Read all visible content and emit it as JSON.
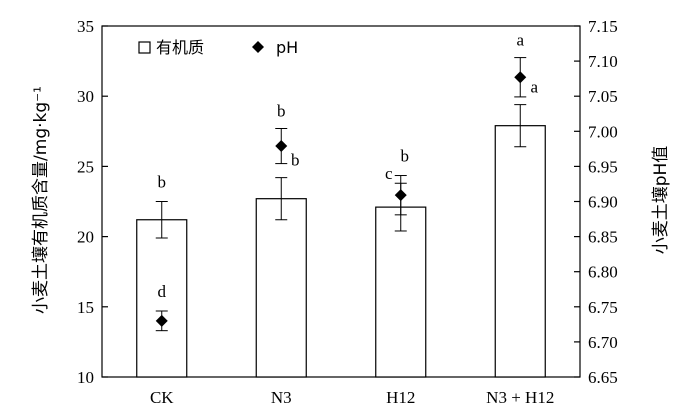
{
  "chart_data": {
    "type": "bar",
    "categories": [
      "CK",
      "N3",
      "H12",
      "N3 + H12"
    ],
    "ylabel": "小麦土壤有机质含量/mg·kg⁻¹",
    "y2label": "小麦土壤pH值",
    "ylim": [
      10,
      35
    ],
    "y2lim": [
      6.65,
      7.15
    ],
    "yticks": [
      "10",
      "15",
      "20",
      "25",
      "30",
      "35"
    ],
    "y2ticks": [
      "6.65",
      "6.70",
      "6.75",
      "6.80",
      "6.85",
      "6.90",
      "6.95",
      "7.00",
      "7.05",
      "7.10",
      "7.15"
    ],
    "legend_position": "top-left",
    "series": [
      {
        "name": "有机质",
        "kind": "bar",
        "axis": "left",
        "values": [
          21.2,
          22.7,
          22.1,
          27.9
        ],
        "errors": [
          1.3,
          1.5,
          1.7,
          1.5
        ],
        "labels": [
          "b",
          "b",
          "c",
          "a"
        ]
      },
      {
        "name": "pH",
        "kind": "scatter",
        "axis": "right",
        "marker": "diamond",
        "values": [
          6.73,
          6.979,
          6.909,
          7.077
        ],
        "errors": [
          0.014,
          0.025,
          0.028,
          0.028
        ],
        "labels": [
          "d",
          "b",
          "b",
          "a"
        ]
      }
    ]
  }
}
